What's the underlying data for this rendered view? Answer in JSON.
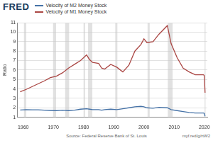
{
  "chart_data": {
    "type": "line",
    "logo": "FRED",
    "y_label": "Ratio",
    "source": "Source: Federal Reserve Bank of St. Louis",
    "url": "myf.red/g/rtW2",
    "x": [
      1959,
      1961,
      1963,
      1965,
      1967,
      1969,
      1971,
      1973,
      1975,
      1977,
      1979,
      1981,
      1982,
      1983,
      1985,
      1986,
      1987,
      1989,
      1991,
      1993,
      1995,
      1997,
      1999,
      2000,
      2001,
      2003,
      2005,
      2007.75,
      2009,
      2011,
      2013,
      2015,
      2017,
      2019.75,
      2020,
      2020.25
    ],
    "series": [
      {
        "name": "Velocity of M2 Money Stock",
        "color": "#4572a7",
        "values": [
          1.77,
          1.8,
          1.78,
          1.78,
          1.75,
          1.72,
          1.7,
          1.75,
          1.7,
          1.75,
          1.85,
          1.9,
          1.85,
          1.8,
          1.8,
          1.75,
          1.8,
          1.85,
          1.8,
          1.9,
          2.0,
          2.1,
          2.15,
          2.1,
          2.0,
          1.95,
          2.05,
          2.0,
          1.8,
          1.7,
          1.6,
          1.5,
          1.45,
          1.45,
          1.4,
          1.1
        ]
      },
      {
        "name": "Velocity of M1 Money Stock",
        "color": "#aa4643",
        "values": [
          3.7,
          3.95,
          4.25,
          4.55,
          4.85,
          5.2,
          5.35,
          5.7,
          6.2,
          6.6,
          7.0,
          7.6,
          7.1,
          6.8,
          6.7,
          6.2,
          6.1,
          6.6,
          6.3,
          5.8,
          6.5,
          8.0,
          8.7,
          9.3,
          8.9,
          9.0,
          9.8,
          10.7,
          8.8,
          7.3,
          6.2,
          5.8,
          5.5,
          5.5,
          5.4,
          3.6
        ]
      }
    ],
    "recessions": [
      [
        1960.25,
        1961.0
      ],
      [
        1969.9,
        1970.9
      ],
      [
        1973.9,
        1975.2
      ],
      [
        1980.0,
        1980.5
      ],
      [
        1981.5,
        1982.9
      ],
      [
        1990.5,
        1991.2
      ],
      [
        2001.2,
        2001.9
      ],
      [
        2007.9,
        2009.5
      ],
      [
        2020.1,
        2020.4
      ]
    ],
    "xlim": [
      1958,
      2021
    ],
    "xticks": [
      1960,
      1970,
      1980,
      1990,
      2000,
      2010,
      2020
    ],
    "ylim": [
      1,
      11
    ],
    "yticks": [
      1,
      2,
      3,
      4,
      5,
      6,
      7,
      8,
      9,
      10,
      11
    ],
    "grid": true
  }
}
